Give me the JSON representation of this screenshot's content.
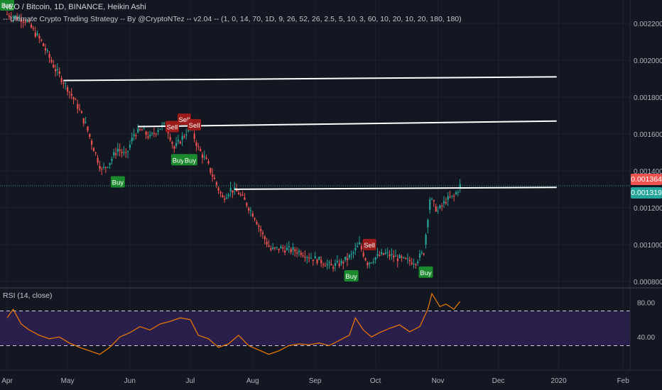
{
  "header": {
    "title": "NEO / Bitcoin, 1D, BINANCE, Heikin Ashi",
    "strategy": "-- Ultimate Crypto Trading Strategy -- By @CryptoNTez -- v2.04 -- (1, 0, 14, 70, 1D, 9, 26, 52, 26, 2.5, 5, 10, 3, 60, 10, 20, 10, 20, 180, 180)"
  },
  "price_tags": {
    "red": "0.001364",
    "teal": "0.001319"
  },
  "colors": {
    "background": "#131722",
    "up_candle": "#26a69a",
    "down_candle": "#ef5350",
    "buy_label": "#1b8a2e",
    "sell_label": "#9c1b1b",
    "rsi_line": "#f57c00",
    "rsi_band": "#2a1e4a",
    "trend_line": "#ffffff",
    "grid": "#1e2230"
  },
  "chart_data": [
    {
      "type": "candlestick",
      "title": "NEO / Bitcoin, 1D, BINANCE, Heikin Ashi",
      "xlabel": "",
      "ylabel": "",
      "x_ticks": [
        "Apr",
        "May",
        "Jun",
        "Jul",
        "Aug",
        "Sep",
        "Oct",
        "Nov",
        "Dec",
        "2020",
        "Feb"
      ],
      "y_ticks": [
        "0.002200",
        "0.002000",
        "0.001800",
        "0.001600",
        "0.001400",
        "0.001200",
        "0.001000",
        "0.000800"
      ],
      "ylim": [
        0.00078,
        0.0023
      ],
      "grid": true,
      "close_path": [
        [
          "Apr 1",
          0.00225
        ],
        [
          "Apr 10",
          0.00222
        ],
        [
          "Apr 18",
          0.0021
        ],
        [
          "Apr 25",
          0.00195
        ],
        [
          "May 1",
          0.00185
        ],
        [
          "May 6",
          0.00175
        ],
        [
          "May 10",
          0.00165
        ],
        [
          "May 14",
          0.00152
        ],
        [
          "May 18",
          0.0014
        ],
        [
          "May 22",
          0.00145
        ],
        [
          "May 26",
          0.00152
        ],
        [
          "May 30",
          0.00148
        ],
        [
          "Jun 3",
          0.0016
        ],
        [
          "Jun 7",
          0.00162
        ],
        [
          "Jun 11",
          0.00158
        ],
        [
          "Jun 15",
          0.00163
        ],
        [
          "Jun 19",
          0.00165
        ],
        [
          "Jun 23",
          0.00152
        ],
        [
          "Jun 27",
          0.00158
        ],
        [
          "Jul 1",
          0.00164
        ],
        [
          "Jul 5",
          0.00152
        ],
        [
          "Jul 9",
          0.00145
        ],
        [
          "Jul 13",
          0.00135
        ],
        [
          "Jul 17",
          0.00125
        ],
        [
          "Jul 21",
          0.0013
        ],
        [
          "Jul 25",
          0.00128
        ],
        [
          "Jul 29",
          0.00122
        ],
        [
          "Aug 2",
          0.00115
        ],
        [
          "Aug 6",
          0.00105
        ],
        [
          "Aug 10",
          0.00097
        ],
        [
          "Aug 15",
          0.00098
        ],
        [
          "Aug 20",
          0.00097
        ],
        [
          "Aug 25",
          0.00096
        ],
        [
          "Aug 30",
          0.00093
        ],
        [
          "Sep 4",
          0.00091
        ],
        [
          "Sep 9",
          0.00088
        ],
        [
          "Sep 14",
          0.0009
        ],
        [
          "Sep 19",
          0.00094
        ],
        [
          "Sep 23",
          0.001
        ],
        [
          "Sep 27",
          0.0009
        ],
        [
          "Oct 1",
          0.00093
        ],
        [
          "Oct 6",
          0.00095
        ],
        [
          "Oct 11",
          0.00093
        ],
        [
          "Oct 16",
          0.00091
        ],
        [
          "Oct 21",
          0.00091
        ],
        [
          "Oct 25",
          0.00096
        ],
        [
          "Oct 28",
          0.00125
        ],
        [
          "Nov 1",
          0.00118
        ],
        [
          "Nov 5",
          0.00124
        ],
        [
          "Nov 9",
          0.00126
        ],
        [
          "Nov 12",
          0.00132
        ]
      ],
      "signals": [
        {
          "label": "Buy",
          "type": "buy",
          "date": "Apr 1",
          "price": 0.0023
        },
        {
          "label": "Buy",
          "type": "buy",
          "date": "May 26",
          "price": 0.00134
        },
        {
          "label": "Sell",
          "type": "sell",
          "date": "Jun 22",
          "price": 0.00164
        },
        {
          "label": "Sell",
          "type": "sell",
          "date": "Jun 28",
          "price": 0.00168
        },
        {
          "label": "Sell",
          "type": "sell",
          "date": "Jul 3",
          "price": 0.00165
        },
        {
          "label": "Buy",
          "type": "buy",
          "date": "Jun 25",
          "price": 0.00146
        },
        {
          "label": "Buy",
          "type": "buy",
          "date": "Jul 1",
          "price": 0.00146
        },
        {
          "label": "Sell",
          "type": "sell",
          "date": "Sep 28",
          "price": 0.001
        },
        {
          "label": "Buy",
          "type": "buy",
          "date": "Sep 19",
          "price": 0.00083
        },
        {
          "label": "Buy",
          "type": "buy",
          "date": "Oct 26",
          "price": 0.00085
        }
      ],
      "trend_lines": [
        {
          "from": [
            "Apr 29",
            0.00189
          ],
          "to": [
            "Dec 30",
            0.00191
          ]
        },
        {
          "from": [
            "Jun 5",
            0.00164
          ],
          "to": [
            "Dec 30",
            0.00167
          ]
        },
        {
          "from": [
            "Jul 23",
            0.0013
          ],
          "to": [
            "Dec 30",
            0.00131
          ]
        }
      ]
    },
    {
      "type": "line",
      "title": "RSI (14, close)",
      "xlabel": "",
      "ylabel": "",
      "y_ticks": [
        "80.00",
        "40.00"
      ],
      "bands": [
        70,
        30
      ],
      "ylim": [
        5,
        95
      ],
      "grid": true,
      "series": [
        {
          "name": "RSI (14, close)",
          "values": [
            [
              "Apr 1",
              62
            ],
            [
              "Apr 4",
              72
            ],
            [
              "Apr 8",
              55
            ],
            [
              "Apr 12",
              48
            ],
            [
              "Apr 17",
              42
            ],
            [
              "Apr 22",
              38
            ],
            [
              "Apr 27",
              40
            ],
            [
              "May 2",
              33
            ],
            [
              "May 7",
              28
            ],
            [
              "May 12",
              24
            ],
            [
              "May 17",
              20
            ],
            [
              "May 22",
              28
            ],
            [
              "May 27",
              40
            ],
            [
              "Jun 1",
              45
            ],
            [
              "Jun 6",
              52
            ],
            [
              "Jun 11",
              48
            ],
            [
              "Jun 16",
              55
            ],
            [
              "Jun 21",
              58
            ],
            [
              "Jun 26",
              62
            ],
            [
              "Jul 1",
              60
            ],
            [
              "Jul 5",
              42
            ],
            [
              "Jul 10",
              38
            ],
            [
              "Jul 15",
              28
            ],
            [
              "Jul 20",
              32
            ],
            [
              "Jul 25",
              42
            ],
            [
              "Jul 30",
              30
            ],
            [
              "Aug 4",
              25
            ],
            [
              "Aug 9",
              20
            ],
            [
              "Aug 14",
              24
            ],
            [
              "Aug 19",
              30
            ],
            [
              "Aug 24",
              32
            ],
            [
              "Aug 29",
              31
            ],
            [
              "Sep 3",
              33
            ],
            [
              "Sep 8",
              30
            ],
            [
              "Sep 13",
              36
            ],
            [
              "Sep 18",
              42
            ],
            [
              "Sep 21",
              62
            ],
            [
              "Sep 25",
              48
            ],
            [
              "Sep 29",
              40
            ],
            [
              "Oct 3",
              45
            ],
            [
              "Oct 8",
              50
            ],
            [
              "Oct 13",
              54
            ],
            [
              "Oct 18",
              46
            ],
            [
              "Oct 23",
              52
            ],
            [
              "Oct 27",
              72
            ],
            [
              "Oct 29",
              90
            ],
            [
              "Nov 2",
              75
            ],
            [
              "Nov 5",
              78
            ],
            [
              "Nov 9",
              72
            ],
            [
              "Nov 12",
              81
            ]
          ]
        }
      ]
    }
  ]
}
